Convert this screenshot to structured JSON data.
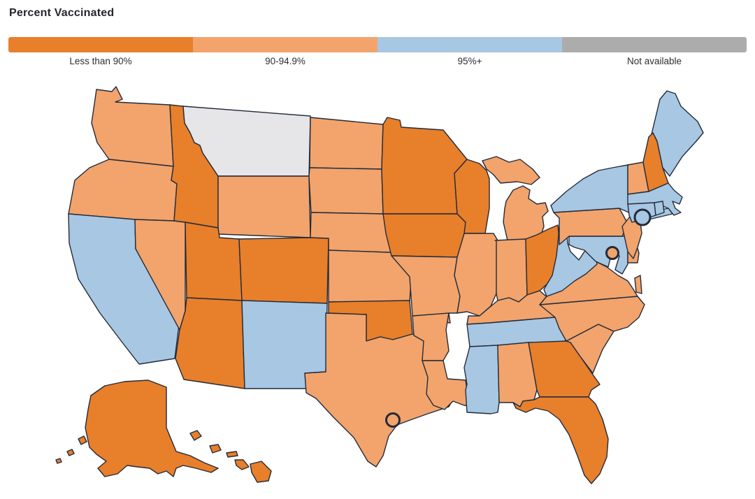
{
  "title": "Percent Vaccinated",
  "legend": {
    "categories": [
      {
        "id": "lt90",
        "label": "Less than 90%",
        "color": "#E87F2B"
      },
      {
        "id": "90-94.9",
        "label": "90-94.9%",
        "color": "#F2A46C"
      },
      {
        "id": "95plus",
        "label": "95%+",
        "color": "#A7C7E3"
      },
      {
        "id": "na",
        "label": "Not available",
        "color": "#ACACAC"
      }
    ]
  },
  "map": {
    "background": "#FFFFFF",
    "border_color": "#232B3A",
    "na_state_fill": "#E6E6E8",
    "states": {
      "WA": "90-94.9",
      "OR": "90-94.9",
      "CA": "95plus",
      "NV": "90-94.9",
      "ID": "lt90",
      "MT": "na",
      "WY": "90-94.9",
      "UT": "lt90",
      "CO": "lt90",
      "AZ": "lt90",
      "NM": "95plus",
      "ND": "90-94.9",
      "SD": "90-94.9",
      "NE": "90-94.9",
      "KS": "90-94.9",
      "OK": "lt90",
      "TX": "90-94.9",
      "MN": "lt90",
      "IA": "lt90",
      "MO": "90-94.9",
      "AR": "90-94.9",
      "LA": "90-94.9",
      "WI": "lt90",
      "IL": "90-94.9",
      "MI": "90-94.9",
      "IN": "90-94.9",
      "OH": "lt90",
      "KY": "90-94.9",
      "TN": "95plus",
      "MS": "95plus",
      "AL": "90-94.9",
      "GA": "lt90",
      "FL": "lt90",
      "SC": "90-94.9",
      "NC": "90-94.9",
      "VA": "90-94.9",
      "WV": "95plus",
      "MD": "95plus",
      "DE": "90-94.9",
      "PA": "90-94.9",
      "NJ": "90-94.9",
      "NY": "95plus",
      "VT": "90-94.9",
      "NH": "lt90",
      "ME": "95plus",
      "MA": "95plus",
      "CT": "95plus",
      "RI": "95plus",
      "AK": "lt90",
      "HI": "lt90"
    },
    "city_markers": [
      {
        "id": "marker-1",
        "category": "95plus"
      },
      {
        "id": "marker-2",
        "category": "90-94.9"
      },
      {
        "id": "marker-3",
        "category": "90-94.9"
      }
    ]
  },
  "chart_data": {
    "type": "heatmap",
    "subtype": "us-choropleth",
    "title": "Percent Vaccinated",
    "legend_position": "top",
    "categories": [
      "Less than 90%",
      "90-94.9%",
      "95%+",
      "Not available"
    ],
    "category_colors": [
      "#E87F2B",
      "#F2A46C",
      "#A7C7E3",
      "#ACACAC"
    ],
    "values": {
      "Less than 90%": [
        "ID",
        "UT",
        "CO",
        "AZ",
        "OK",
        "MN",
        "IA",
        "WI",
        "OH",
        "NH",
        "GA",
        "FL",
        "AK",
        "HI"
      ],
      "90-94.9%": [
        "WA",
        "OR",
        "NV",
        "WY",
        "ND",
        "SD",
        "NE",
        "KS",
        "TX",
        "MO",
        "AR",
        "LA",
        "IL",
        "IN",
        "MI",
        "KY",
        "AL",
        "SC",
        "NC",
        "VA",
        "DE",
        "PA",
        "NJ",
        "VT"
      ],
      "95%+": [
        "CA",
        "NM",
        "TN",
        "MS",
        "WV",
        "MD",
        "NY",
        "CT",
        "RI",
        "MA",
        "ME"
      ],
      "Not available": [
        "MT"
      ],
      "city_circles": {
        "northeast-coast-city": "95%+",
        "mid-atlantic-city": "90-94.9%",
        "gulf-coast-city": "90-94.9%"
      }
    }
  }
}
